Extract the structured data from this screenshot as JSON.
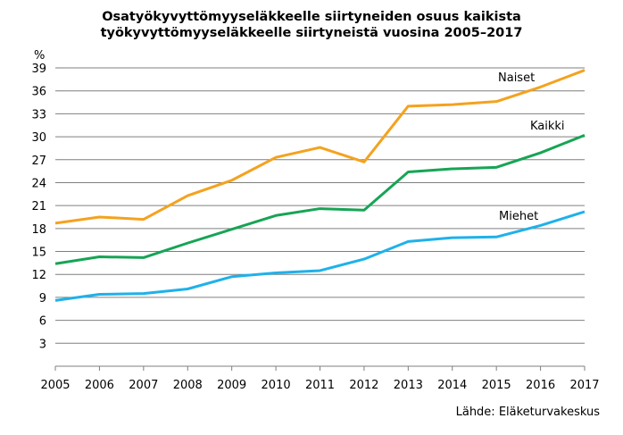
{
  "chart_data": {
    "type": "line",
    "title_line1": "Osatyökyvyttömyyseläkkeelle siirtyneiden osuus kaikista",
    "title_line2": "työkyvyttömyyseläkkeelle siirtyneistä vuosina 2005–2017",
    "ylabel": "%",
    "source": "Lähde: Eläketurvakeskus",
    "x": [
      2005,
      2006,
      2007,
      2008,
      2009,
      2010,
      2011,
      2012,
      2013,
      2014,
      2015,
      2016,
      2017
    ],
    "ylim": [
      0,
      39
    ],
    "yticks": [
      3,
      6,
      9,
      12,
      15,
      18,
      21,
      24,
      27,
      30,
      33,
      36,
      39
    ],
    "grid": true,
    "series": [
      {
        "name": "Naiset",
        "color": "#f4a21e",
        "values": [
          18.7,
          19.5,
          19.2,
          22.3,
          24.3,
          27.3,
          28.6,
          26.7,
          34.0,
          34.2,
          34.6,
          36.5,
          38.7
        ]
      },
      {
        "name": "Kaikki",
        "color": "#17a455",
        "values": [
          13.4,
          14.3,
          14.2,
          16.1,
          17.9,
          19.7,
          20.6,
          20.4,
          25.4,
          25.8,
          26.0,
          27.9,
          30.2
        ]
      },
      {
        "name": "Miehet",
        "color": "#1fb1ea",
        "values": [
          8.6,
          9.4,
          9.5,
          10.1,
          11.7,
          12.2,
          12.5,
          14.0,
          16.3,
          16.8,
          16.9,
          18.4,
          20.2
        ]
      }
    ]
  }
}
